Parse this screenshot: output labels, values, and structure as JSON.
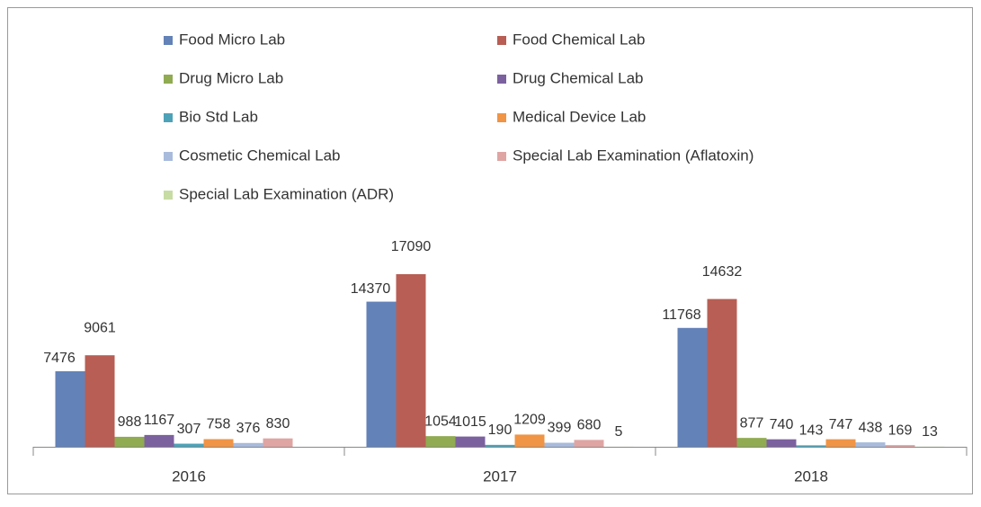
{
  "chart_data": {
    "type": "bar",
    "categories": [
      "2016",
      "2017",
      "2018"
    ],
    "series": [
      {
        "name": "Food Micro Lab",
        "color": "#6382b8",
        "values": [
          7476,
          14370,
          11768
        ]
      },
      {
        "name": "Food Chemical Lab",
        "color": "#b85e54",
        "values": [
          9061,
          17090,
          14632
        ]
      },
      {
        "name": "Drug Micro Lab",
        "color": "#90ab52",
        "values": [
          988,
          1054,
          877
        ]
      },
      {
        "name": "Drug Chemical Lab",
        "color": "#7c619f",
        "values": [
          1167,
          1015,
          740
        ]
      },
      {
        "name": "Bio Std Lab",
        "color": "#4ea2b8",
        "values": [
          307,
          190,
          143
        ]
      },
      {
        "name": "Medical Device Lab",
        "color": "#f09445",
        "values": [
          758,
          1209,
          747
        ]
      },
      {
        "name": "Cosmetic Chemical Lab",
        "color": "#a8bbdc",
        "values": [
          376,
          399,
          438
        ]
      },
      {
        "name": "Special Lab Examination (Aflatoxin)",
        "color": "#dfa5a3",
        "values": [
          830,
          680,
          169
        ]
      },
      {
        "name": "Special Lab Examination (ADR)",
        "color": "#c7dca5",
        "values": [
          null,
          5,
          13
        ]
      }
    ]
  }
}
